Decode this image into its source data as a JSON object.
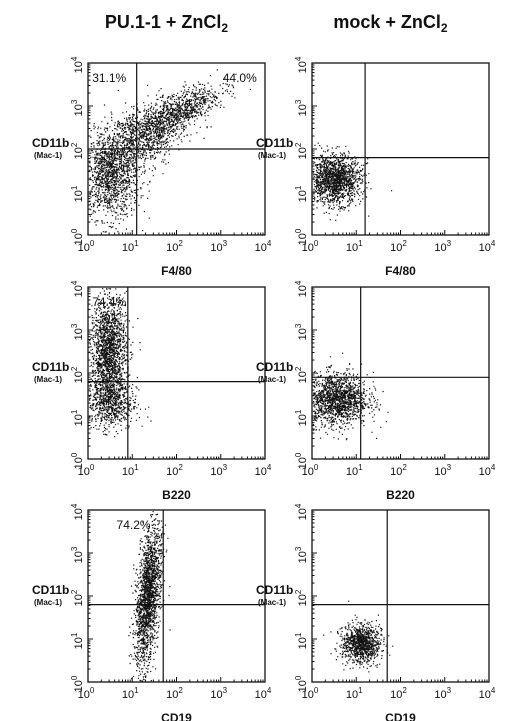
{
  "columns": [
    {
      "title": "PU.1-1 + ZnCl",
      "title_sub": "2"
    },
    {
      "title": "mock + ZnCl",
      "title_sub": "2"
    }
  ],
  "tick_base": "10",
  "tick_exponents": [
    "0",
    "1",
    "2",
    "3",
    "4"
  ],
  "y_label": "CD11b",
  "y_sublabel": "(Mac-1)",
  "rows": [
    {
      "x_label": "F4/80",
      "panels": [
        {
          "percentages": [
            "31.1%",
            "44.0%"
          ]
        },
        {
          "percentages": []
        }
      ]
    },
    {
      "x_label": "B220",
      "panels": [
        {
          "percentages": [
            "74.4%"
          ]
        },
        {
          "percentages": []
        }
      ]
    },
    {
      "x_label": "CD19",
      "panels": [
        {
          "percentages": [
            "74.2%"
          ]
        },
        {
          "percentages": []
        }
      ]
    }
  ]
}
